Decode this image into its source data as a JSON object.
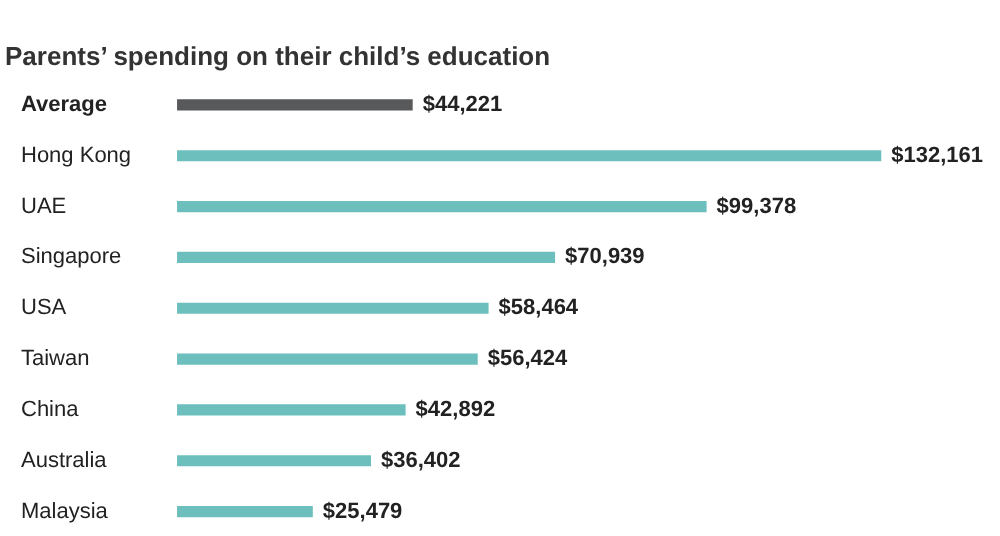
{
  "chart_data": {
    "type": "bar",
    "orientation": "horizontal",
    "title": "Parents’ spending on their child’s education",
    "categories": [
      "Average",
      "Hong Kong",
      "UAE",
      "Singapore",
      "USA",
      "Taiwan",
      "China",
      "Australia",
      "Malaysia"
    ],
    "values": [
      44221,
      132161,
      99378,
      70939,
      58464,
      56424,
      42892,
      36402,
      25479
    ],
    "colors": [
      "#58595b",
      "#6cbfbd",
      "#6cbfbd",
      "#6cbfbd",
      "#6cbfbd",
      "#6cbfbd",
      "#6cbfbd",
      "#6cbfbd",
      "#6cbfbd"
    ],
    "value_labels": [
      "$44,221",
      "$132,161",
      "$99,378",
      "$70,939",
      "$58,464",
      "$56,424",
      "$42,892",
      "$36,402",
      "$25,479"
    ],
    "grid": false
  }
}
